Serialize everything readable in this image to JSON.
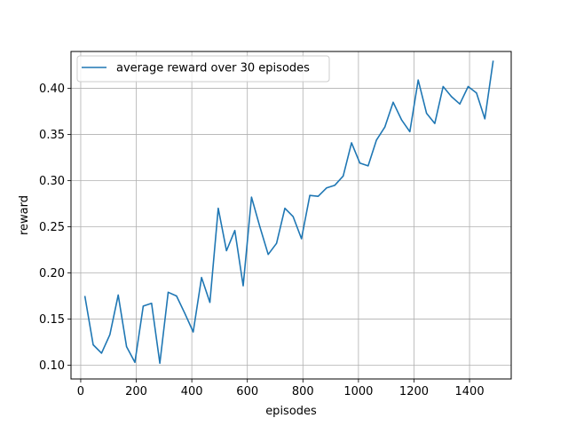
{
  "chart_data": {
    "type": "line",
    "xlabel": "episodes",
    "ylabel": "reward",
    "xlim": [
      -35,
      1550
    ],
    "ylim": [
      0.085,
      0.44
    ],
    "xticks": [
      0,
      200,
      400,
      600,
      800,
      1000,
      1200,
      1400
    ],
    "yticks": [
      "0.10",
      "0.15",
      "0.20",
      "0.25",
      "0.30",
      "0.35",
      "0.40"
    ],
    "grid": true,
    "legend_position": "upper-left",
    "color": "#1f77b4",
    "series": [
      {
        "name": "average reward over 30 episodes",
        "x": [
          15,
          45,
          75,
          105,
          135,
          165,
          195,
          225,
          255,
          285,
          315,
          345,
          375,
          405,
          435,
          465,
          495,
          525,
          555,
          585,
          615,
          645,
          675,
          705,
          735,
          765,
          795,
          825,
          855,
          885,
          915,
          945,
          975,
          1005,
          1035,
          1065,
          1095,
          1125,
          1155,
          1185,
          1215,
          1245,
          1275,
          1305,
          1335,
          1365,
          1395,
          1425,
          1455,
          1485
        ],
        "y": [
          0.175,
          0.122,
          0.113,
          0.133,
          0.176,
          0.12,
          0.103,
          0.164,
          0.167,
          0.102,
          0.179,
          0.175,
          0.156,
          0.136,
          0.195,
          0.168,
          0.27,
          0.224,
          0.246,
          0.186,
          0.282,
          0.25,
          0.22,
          0.232,
          0.27,
          0.261,
          0.237,
          0.284,
          0.283,
          0.292,
          0.295,
          0.305,
          0.341,
          0.319,
          0.316,
          0.344,
          0.358,
          0.385,
          0.366,
          0.353,
          0.409,
          0.373,
          0.362,
          0.402,
          0.391,
          0.383,
          0.402,
          0.395,
          0.367,
          0.43
        ]
      }
    ]
  }
}
